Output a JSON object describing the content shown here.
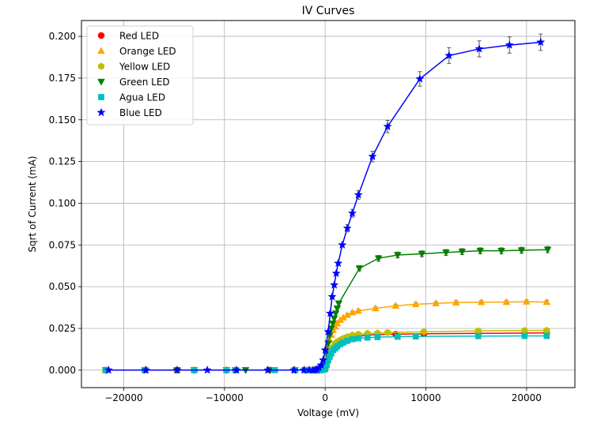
{
  "chart_data": {
    "type": "scatter",
    "title": "IV Curves",
    "xlabel": "Voltage (mV)",
    "ylabel": "Sqrt of Current (mA)",
    "xlim": [
      -24200,
      24800
    ],
    "ylim": [
      -0.0105,
      0.2095
    ],
    "xticks": [
      -20000,
      -10000,
      0,
      10000,
      20000
    ],
    "xtick_labels": [
      "−20000",
      "−10000",
      "0",
      "10000",
      "20000"
    ],
    "yticks": [
      0.0,
      0.025,
      0.05,
      0.075,
      0.1,
      0.125,
      0.15,
      0.175,
      0.2
    ],
    "ytick_labels": [
      "0.000",
      "0.025",
      "0.050",
      "0.075",
      "0.100",
      "0.125",
      "0.150",
      "0.175",
      "0.200"
    ],
    "grid": true,
    "legend_position": "top-left",
    "series": [
      {
        "name": "Red LED",
        "color": "#ff0000",
        "line_color": "#ff0000",
        "marker": "circle",
        "x": [
          -21800,
          -17900,
          -14700,
          -13000,
          -9800,
          -8900,
          -5500,
          -3000,
          -2000,
          -1500,
          -1200,
          -1000,
          -800,
          -600,
          -400,
          -200,
          0,
          150,
          300,
          450,
          600,
          800,
          1000,
          1200,
          1500,
          1800,
          2200,
          2700,
          3300,
          4200,
          5200,
          7000,
          9800,
          15200,
          19800,
          22000
        ],
        "y": [
          0,
          0,
          0,
          0,
          0,
          0,
          0,
          0,
          0,
          0,
          0,
          0,
          0,
          0,
          0.0002,
          0.0005,
          0.001,
          0.004,
          0.007,
          0.0095,
          0.0115,
          0.0135,
          0.015,
          0.016,
          0.017,
          0.018,
          0.019,
          0.0197,
          0.0203,
          0.021,
          0.0213,
          0.0215,
          0.0218,
          0.022,
          0.0222,
          0.0223
        ]
      },
      {
        "name": "Orange LED",
        "color": "#ffa500",
        "line_color": "#ffa500",
        "marker": "triangle-up",
        "x": [
          -21800,
          -17900,
          -14700,
          -13000,
          -9800,
          -8900,
          -5500,
          -3000,
          -2000,
          -1500,
          -1200,
          -1000,
          -800,
          -600,
          -400,
          -200,
          0,
          150,
          300,
          450,
          600,
          800,
          1000,
          1200,
          1500,
          1800,
          2200,
          2700,
          3300,
          5000,
          7000,
          9000,
          11000,
          13000,
          15500,
          18000,
          20000,
          22000
        ],
        "y": [
          0,
          0,
          0,
          0,
          0,
          0,
          0,
          0,
          0,
          0,
          0,
          0,
          0,
          0,
          0.0002,
          0.0005,
          0.002,
          0.008,
          0.014,
          0.018,
          0.021,
          0.024,
          0.026,
          0.028,
          0.03,
          0.0315,
          0.033,
          0.0345,
          0.0355,
          0.037,
          0.0385,
          0.0395,
          0.04,
          0.0405,
          0.0407,
          0.0408,
          0.041,
          0.0408
        ]
      },
      {
        "name": "Yellow LED",
        "color": "#bfbf00",
        "line_color": "#bfbf00",
        "marker": "hexagon",
        "x": [
          -21800,
          -17900,
          -14700,
          -13000,
          -9800,
          -8900,
          -5500,
          -3000,
          -2000,
          -1500,
          -1200,
          -1000,
          -800,
          -600,
          -400,
          -200,
          0,
          150,
          300,
          450,
          600,
          800,
          1000,
          1200,
          1500,
          1800,
          2200,
          2700,
          3300,
          4200,
          5200,
          6200,
          9800,
          15200,
          19800,
          22000
        ],
        "y": [
          0,
          0,
          0,
          0,
          0,
          0,
          0,
          0,
          0,
          0,
          0,
          0,
          0,
          0,
          0.0002,
          0.0005,
          0.001,
          0.004,
          0.0075,
          0.01,
          0.012,
          0.014,
          0.016,
          0.017,
          0.018,
          0.019,
          0.02,
          0.021,
          0.0215,
          0.022,
          0.0222,
          0.0225,
          0.023,
          0.0235,
          0.0237,
          0.0238
        ]
      },
      {
        "name": "Green LED",
        "color": "#008000",
        "line_color": "#008000",
        "marker": "triangle-down",
        "x": [
          -21800,
          -17900,
          -14700,
          -13000,
          -9800,
          -8900,
          -7900,
          -5500,
          -3000,
          -2000,
          -1500,
          -1200,
          -1000,
          -800,
          -600,
          -400,
          -200,
          0,
          150,
          300,
          450,
          600,
          750,
          900,
          1050,
          1200,
          1350,
          3400,
          5300,
          7200,
          9600,
          12000,
          13600,
          15400,
          17500,
          19500,
          22100
        ],
        "y": [
          0,
          0,
          0,
          0,
          0,
          0,
          0,
          0,
          0,
          0,
          0,
          0,
          0,
          0,
          0,
          0.0002,
          0.001,
          0.003,
          0.01,
          0.016,
          0.021,
          0.025,
          0.028,
          0.031,
          0.034,
          0.037,
          0.04,
          0.061,
          0.067,
          0.069,
          0.0697,
          0.0705,
          0.071,
          0.0715,
          0.0715,
          0.0718,
          0.0722
        ]
      },
      {
        "name": "Agua LED",
        "color": "#00bfbf",
        "line_color": "#00bfbf",
        "marker": "square",
        "x": [
          -21800,
          -17900,
          -13000,
          -9800,
          -8900,
          -5000,
          -3000,
          -2000,
          -1500,
          -1200,
          -1000,
          -800,
          -600,
          -400,
          -200,
          0,
          150,
          300,
          450,
          600,
          800,
          1000,
          1200,
          1500,
          1800,
          2200,
          2700,
          3300,
          4200,
          5200,
          7200,
          9000,
          15200,
          19800,
          22000
        ],
        "y": [
          0,
          0,
          0,
          0,
          0,
          0,
          0,
          0,
          0,
          0,
          0,
          0,
          0,
          0,
          0.0002,
          0.0006,
          0.003,
          0.006,
          0.008,
          0.01,
          0.012,
          0.013,
          0.0142,
          0.0155,
          0.0165,
          0.0175,
          0.0185,
          0.019,
          0.0195,
          0.0198,
          0.02,
          0.0202,
          0.0204,
          0.0205,
          0.0205
        ]
      },
      {
        "name": "Blue LED",
        "color": "#0000ff",
        "line_color": "#0000ff",
        "marker": "star",
        "x": [
          -21500,
          -17800,
          -14700,
          -11700,
          -8800,
          -5700,
          -3100,
          -2100,
          -1600,
          -1200,
          -1000,
          -800,
          -600,
          -400,
          -200,
          0,
          300,
          500,
          700,
          900,
          1100,
          1300,
          1700,
          2200,
          2700,
          3300,
          4700,
          6200,
          9400,
          12300,
          15300,
          18300,
          21400
        ],
        "y": [
          0,
          0,
          0,
          0,
          0,
          0,
          0,
          0,
          0,
          0,
          0,
          0.0005,
          0.0015,
          0.003,
          0.006,
          0.012,
          0.023,
          0.034,
          0.044,
          0.051,
          0.058,
          0.064,
          0.075,
          0.085,
          0.094,
          0.105,
          0.128,
          0.146,
          0.1745,
          0.1885,
          0.1925,
          0.1948,
          0.1965
        ]
      }
    ]
  }
}
